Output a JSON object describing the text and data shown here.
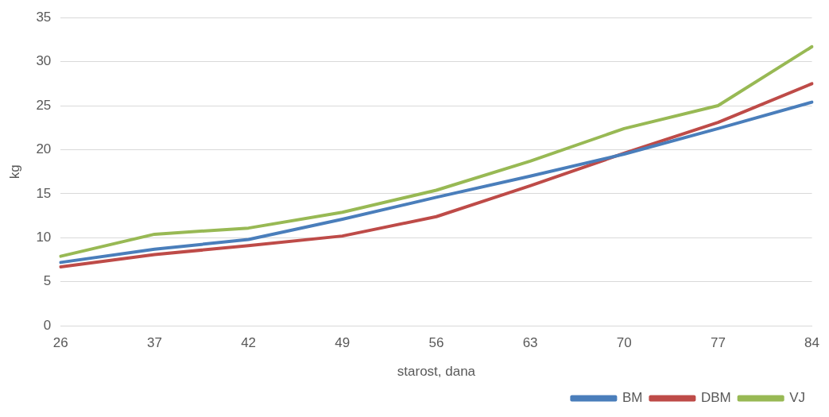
{
  "chart_data": {
    "type": "line",
    "xlabel": "starost, dana",
    "ylabel": "kg",
    "categories": [
      "26",
      "37",
      "42",
      "49",
      "56",
      "63",
      "70",
      "77",
      "84"
    ],
    "series": [
      {
        "name": "BM",
        "color": "#4a7ebb",
        "values": [
          7.2,
          8.7,
          9.8,
          12.1,
          14.6,
          17.0,
          19.5,
          22.4,
          25.4
        ]
      },
      {
        "name": "DBM",
        "color": "#be4b48",
        "values": [
          6.7,
          8.1,
          9.1,
          10.2,
          12.4,
          15.9,
          19.6,
          23.1,
          27.5
        ]
      },
      {
        "name": "VJ",
        "color": "#98b954",
        "values": [
          7.9,
          10.4,
          11.1,
          12.9,
          15.4,
          18.7,
          22.4,
          25.0,
          31.7
        ]
      }
    ],
    "ylim": [
      0,
      35
    ],
    "yticks": [
      0,
      5,
      10,
      15,
      20,
      25,
      30,
      35
    ],
    "grid": "y",
    "legend": "bottom right",
    "marker": "none",
    "line_style": "solid"
  }
}
